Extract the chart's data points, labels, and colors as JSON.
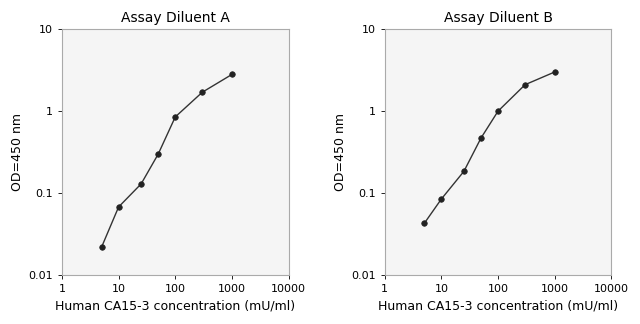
{
  "title_A": "Assay Diluent A",
  "title_B": "Assay Diluent B",
  "xlabel": "Human CA15-3 concentration (mU/ml)",
  "ylabel": "OD=450 nm",
  "xlim": [
    1,
    10000
  ],
  "ylim": [
    0.01,
    10
  ],
  "x_A": [
    5,
    10,
    25,
    50,
    100,
    300,
    1000
  ],
  "y_A": [
    0.022,
    0.068,
    0.13,
    0.3,
    0.85,
    1.7,
    2.8
  ],
  "x_B": [
    5,
    10,
    25,
    50,
    100,
    300,
    1000
  ],
  "y_B": [
    0.043,
    0.085,
    0.185,
    0.47,
    1.0,
    2.1,
    3.0
  ],
  "line_color": "#333333",
  "marker": "o",
  "markersize": 4,
  "markerfacecolor": "#222222",
  "bg_color": "#ffffff",
  "plot_bg_color": "#f5f5f5",
  "spine_color": "#aaaaaa",
  "title_fontsize": 10,
  "label_fontsize": 9,
  "tick_fontsize": 8,
  "x_ticks": [
    1,
    10,
    100,
    1000,
    10000
  ],
  "x_ticklabels": [
    "1",
    "10",
    "100",
    "1000",
    "10000"
  ],
  "y_ticks": [
    0.01,
    0.1,
    1,
    10
  ],
  "y_ticklabels": [
    "0.01",
    "0.1",
    "1",
    "10"
  ]
}
